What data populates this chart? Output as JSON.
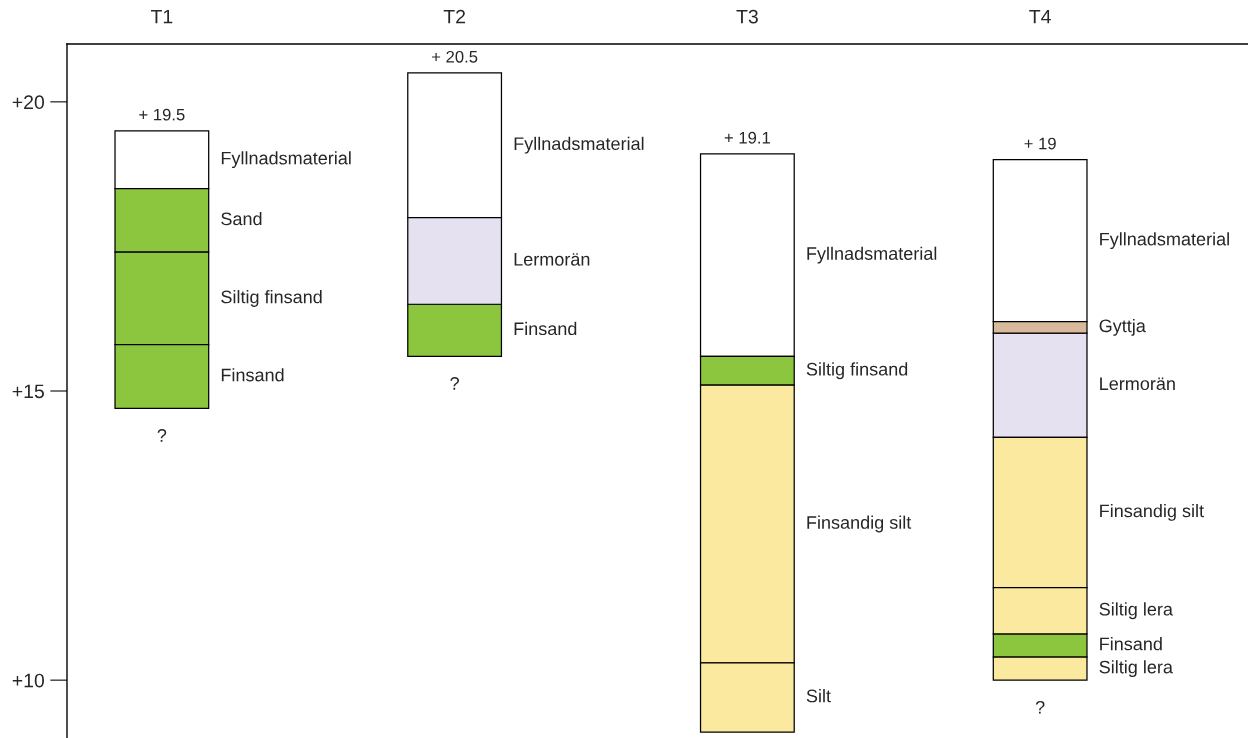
{
  "chart_data": {
    "type": "bar",
    "categories": [
      "T1",
      "T2",
      "T3",
      "T4"
    ],
    "series": [
      {
        "name": "Fyllnadsmaterial",
        "color": "#ffffff",
        "base": [
          18.5,
          18.0,
          15.6,
          16.2
        ],
        "values": [
          1.0,
          2.5,
          3.5,
          2.8
        ]
      },
      {
        "name": "Sand",
        "color": "#8cc63f",
        "base": [
          17.4,
          null,
          null,
          null
        ],
        "values": [
          1.1,
          null,
          null,
          null
        ]
      },
      {
        "name": "Siltig finsand",
        "color": "#8cc63f",
        "base": [
          15.8,
          null,
          15.1,
          null
        ],
        "values": [
          1.6,
          null,
          0.5,
          null
        ]
      },
      {
        "name": "Finsand",
        "color": "#8cc63f",
        "base": [
          14.7,
          15.6,
          null,
          10.4
        ],
        "values": [
          1.1,
          0.9,
          null,
          0.4
        ]
      },
      {
        "name": "Lermorän",
        "color": "#e6e1f0",
        "base": [
          null,
          16.5,
          null,
          14.2
        ],
        "values": [
          null,
          1.5,
          null,
          1.8
        ]
      },
      {
        "name": "Gyttja",
        "color": "#d8b99b",
        "base": [
          null,
          null,
          null,
          16.0
        ],
        "values": [
          null,
          null,
          null,
          0.2
        ]
      },
      {
        "name": "Finsandig silt",
        "color": "#fce9a0",
        "base": [
          null,
          null,
          10.3,
          11.6
        ],
        "values": [
          null,
          null,
          4.8,
          2.6
        ]
      },
      {
        "name": "Silt",
        "color": "#fce9a0",
        "base": [
          null,
          null,
          9.1,
          null
        ],
        "values": [
          null,
          null,
          1.2,
          null
        ]
      },
      {
        "name": "Siltig lera",
        "color": "#fce9a0",
        "base": [
          null,
          null,
          null,
          10.8
        ],
        "values": [
          null,
          null,
          null,
          0.8
        ]
      },
      {
        "name": "Siltig lera",
        "color": "#fce9a0",
        "base": [
          null,
          null,
          null,
          10.0
        ],
        "values": [
          null,
          null,
          null,
          0.4
        ]
      }
    ],
    "ylim": [
      9,
      21
    ],
    "yticks": [
      {
        "value": 10,
        "label": "+10"
      },
      {
        "value": 15,
        "label": "+15"
      },
      {
        "value": 20,
        "label": "+20"
      }
    ],
    "grid": false,
    "legend": false,
    "annotations": [
      {
        "text": "+ 19.5",
        "x": "T1",
        "y": 19.5
      },
      {
        "text": "?",
        "x": "T1",
        "y": 14.7
      },
      {
        "text": "+ 20.5",
        "x": "T2",
        "y": 20.5
      },
      {
        "text": "?",
        "x": "T2",
        "y": 15.6
      },
      {
        "text": "+ 19.1",
        "x": "T3",
        "y": 19.1
      },
      {
        "text": "+ 19",
        "x": "T4",
        "y": 19.0
      },
      {
        "text": "?",
        "x": "T4",
        "y": 10.0
      }
    ]
  }
}
